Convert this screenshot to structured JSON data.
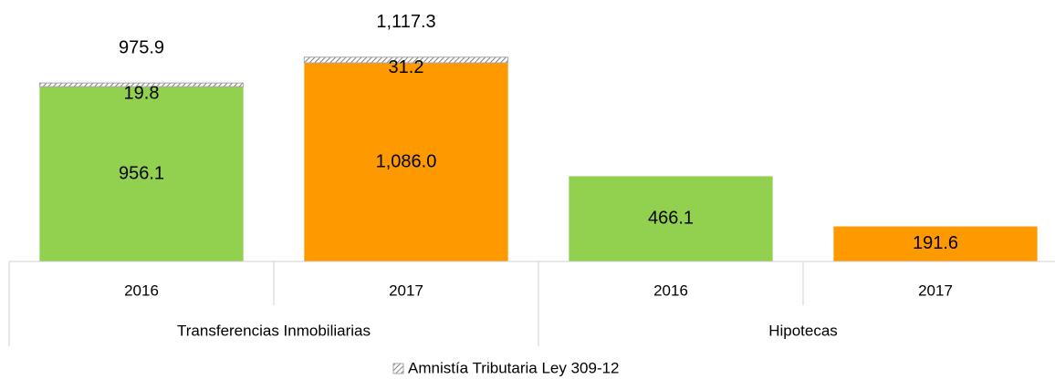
{
  "chart_data": {
    "type": "stacked_bar",
    "groups": [
      "Transferencias Inmobiliarias",
      "Hipotecas"
    ],
    "categories": [
      "2016",
      "2017",
      "2016",
      "2017"
    ],
    "category_groups": [
      0,
      0,
      1,
      1
    ],
    "series": [
      {
        "colors": [
          "#92d050",
          "#ff9900",
          "#92d050",
          "#ff9900"
        ],
        "values": [
          956.1,
          1086.0,
          466.1,
          191.6
        ],
        "value_labels": [
          "956.1",
          "1,086.0",
          "466.1",
          "191.6"
        ]
      },
      {
        "name": "Amnistía Tributaria Ley 309-12",
        "color": "#a6a6a6",
        "pattern": "hatch",
        "values": [
          19.8,
          31.2,
          null,
          null
        ],
        "value_labels": [
          "19.8",
          "31.2",
          null,
          null
        ]
      }
    ],
    "totals": {
      "values": [
        975.9,
        1117.3,
        null,
        null
      ],
      "value_labels": [
        "975.9",
        "1,117.3",
        null,
        null
      ]
    },
    "ylim": [
      0,
      1400
    ],
    "legend": "bottom"
  }
}
